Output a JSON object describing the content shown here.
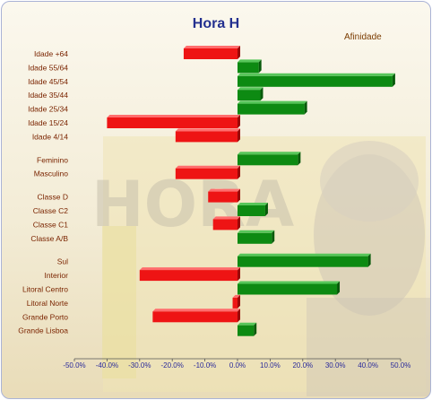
{
  "chart_data": {
    "type": "bar",
    "orientation": "horizontal",
    "title": "Hora H",
    "legend": "Afinidade",
    "legend_position": "top-right",
    "categories": [
      "Idade +64",
      "Idade 55/64",
      "Idade 45/54",
      "Idade 35/44",
      "Idade 25/34",
      "Idade 15/24",
      "Idade 4/14",
      "Feminino",
      "Masculino",
      "Classe D",
      "Classe C2",
      "Classe C1",
      "Classe A/B",
      "Sul",
      "Interior",
      "Litoral Centro",
      "Litoral Norte",
      "Grande Porto",
      "Grande Lisboa"
    ],
    "values": [
      -16.5,
      6.5,
      47.5,
      7.0,
      20.5,
      -40.0,
      -19.0,
      18.5,
      -19.0,
      -9.0,
      8.5,
      -7.5,
      10.5,
      40.0,
      -30.0,
      30.5,
      -1.5,
      -26.0,
      5.0
    ],
    "groups": [
      7,
      2,
      4,
      6
    ],
    "xlim": [
      -50,
      50
    ],
    "xticks": [
      "-50.0%",
      "-40.0%",
      "-30.0%",
      "-20.0%",
      "-10.0%",
      "0.0%",
      "10.0%",
      "20.0%",
      "30.0%",
      "40.0%",
      "50.0%"
    ],
    "colors": {
      "positive": "#0d8a12",
      "negative": "#ee1414"
    },
    "grid": false
  }
}
